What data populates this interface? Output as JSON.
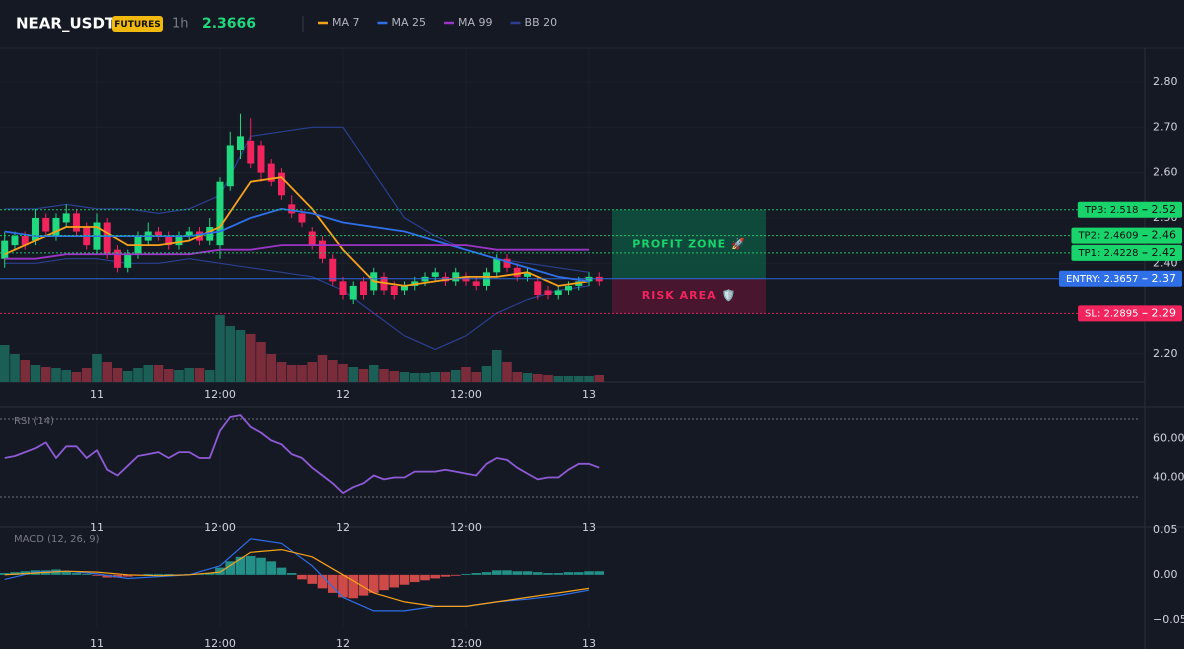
{
  "header": {
    "symbol": "NEAR_USDT",
    "badge": "FUTURES",
    "interval": "1h",
    "price": 2.3666
  },
  "chart_data": [
    {
      "type": "candlestick",
      "xlim": [
        -9.46,
        102.24
      ],
      "xticks": [
        {
          "value": 0,
          "label": "11"
        },
        {
          "value": 12,
          "label": "12:00"
        },
        {
          "value": 24,
          "label": "12"
        },
        {
          "value": 36,
          "label": "12:00"
        },
        {
          "value": 48,
          "label": "13"
        }
      ],
      "ylim": [
        2.138,
        2.875
      ],
      "yticks": [
        {
          "value": 2.2,
          "label": "2.20"
        },
        {
          "value": 2.4,
          "label": "2.40"
        },
        {
          "value": 2.5,
          "label": "2.50"
        },
        {
          "value": 2.6,
          "label": "2.60"
        },
        {
          "value": 2.7,
          "label": "2.70"
        },
        {
          "value": 2.8,
          "label": "2.80"
        }
      ],
      "grid": true,
      "up_color": "#20d97e",
      "down_color": "#f2245d",
      "volume_up_color": "#1b5e56",
      "volume_down_color": "#7b2c3b",
      "x": [
        -9,
        -8,
        -7,
        -6,
        -5,
        -4,
        -3,
        -2,
        -1,
        0,
        1,
        2,
        3,
        4,
        5,
        6,
        7,
        8,
        9,
        10,
        11,
        12,
        13,
        14,
        15,
        16,
        17,
        18,
        19,
        20,
        21,
        22,
        23,
        24,
        25,
        26,
        27,
        28,
        29,
        30,
        31,
        32,
        33,
        34,
        35,
        36,
        37,
        38,
        39,
        40,
        41,
        42,
        43,
        44,
        45,
        46,
        47,
        48,
        49
      ],
      "open": [
        2.41,
        2.44,
        2.46,
        2.45,
        2.5,
        2.46,
        2.49,
        2.51,
        2.48,
        2.43,
        2.49,
        2.43,
        2.39,
        2.42,
        2.45,
        2.47,
        2.46,
        2.44,
        2.46,
        2.47,
        2.45,
        2.44,
        2.57,
        2.65,
        2.67,
        2.66,
        2.62,
        2.6,
        2.53,
        2.51,
        2.47,
        2.45,
        2.41,
        2.36,
        2.32,
        2.36,
        2.34,
        2.37,
        2.35,
        2.34,
        2.35,
        2.36,
        2.37,
        2.37,
        2.36,
        2.37,
        2.36,
        2.35,
        2.38,
        2.41,
        2.39,
        2.37,
        2.36,
        2.34,
        2.33,
        2.34,
        2.35,
        2.36,
        2.37
      ],
      "high": [
        2.47,
        2.47,
        2.47,
        2.52,
        2.51,
        2.51,
        2.53,
        2.52,
        2.49,
        2.51,
        2.5,
        2.44,
        2.43,
        2.47,
        2.49,
        2.48,
        2.47,
        2.47,
        2.48,
        2.48,
        2.5,
        2.59,
        2.69,
        2.73,
        2.72,
        2.67,
        2.63,
        2.61,
        2.55,
        2.52,
        2.48,
        2.46,
        2.42,
        2.37,
        2.36,
        2.37,
        2.39,
        2.38,
        2.36,
        2.36,
        2.37,
        2.38,
        2.39,
        2.38,
        2.39,
        2.38,
        2.37,
        2.39,
        2.42,
        2.42,
        2.4,
        2.39,
        2.37,
        2.35,
        2.35,
        2.36,
        2.37,
        2.38,
        2.38
      ],
      "low": [
        2.39,
        2.43,
        2.43,
        2.44,
        2.46,
        2.45,
        2.48,
        2.46,
        2.43,
        2.42,
        2.41,
        2.38,
        2.38,
        2.41,
        2.44,
        2.45,
        2.43,
        2.43,
        2.45,
        2.44,
        2.44,
        2.41,
        2.56,
        2.63,
        2.61,
        2.58,
        2.57,
        2.54,
        2.5,
        2.48,
        2.43,
        2.4,
        2.35,
        2.32,
        2.31,
        2.32,
        2.33,
        2.33,
        2.32,
        2.33,
        2.34,
        2.35,
        2.36,
        2.35,
        2.35,
        2.35,
        2.34,
        2.34,
        2.37,
        2.38,
        2.36,
        2.36,
        2.32,
        2.32,
        2.32,
        2.33,
        2.34,
        2.35,
        2.35
      ],
      "close": [
        2.45,
        2.46,
        2.44,
        2.5,
        2.47,
        2.5,
        2.51,
        2.47,
        2.44,
        2.49,
        2.42,
        2.39,
        2.42,
        2.46,
        2.47,
        2.46,
        2.44,
        2.46,
        2.47,
        2.45,
        2.48,
        2.58,
        2.66,
        2.68,
        2.62,
        2.6,
        2.58,
        2.55,
        2.51,
        2.49,
        2.44,
        2.41,
        2.36,
        2.33,
        2.35,
        2.33,
        2.38,
        2.34,
        2.33,
        2.35,
        2.36,
        2.37,
        2.38,
        2.36,
        2.38,
        2.36,
        2.35,
        2.38,
        2.41,
        2.39,
        2.37,
        2.38,
        2.33,
        2.33,
        2.34,
        2.35,
        2.36,
        2.37,
        2.36
      ],
      "volume": [
        37,
        28,
        22,
        17,
        15,
        14,
        12,
        10,
        14,
        28,
        20,
        14,
        11,
        14,
        17,
        17,
        13,
        12,
        14,
        14,
        12,
        67,
        56,
        52,
        48,
        40,
        28,
        20,
        17,
        17,
        20,
        27,
        22,
        18,
        15,
        13,
        17,
        13,
        11,
        10,
        9,
        9,
        10,
        10,
        12,
        15,
        10,
        16,
        32,
        20,
        10,
        9,
        8,
        7,
        6,
        6,
        6,
        6,
        7
      ],
      "series": [
        {
          "name": "MA 7",
          "color": "#f7a21b",
          "x": [
            -9,
            -6,
            -3,
            0,
            3,
            6,
            9,
            12,
            15,
            18,
            21,
            24,
            27,
            30,
            33,
            36,
            39,
            42,
            45,
            48
          ],
          "values": [
            2.42,
            2.45,
            2.48,
            2.48,
            2.44,
            2.44,
            2.45,
            2.48,
            2.58,
            2.59,
            2.52,
            2.43,
            2.36,
            2.35,
            2.36,
            2.37,
            2.37,
            2.38,
            2.35,
            2.36
          ]
        },
        {
          "name": "MA 25",
          "color": "#2f6fe8",
          "x": [
            -9,
            -6,
            -3,
            0,
            3,
            6,
            9,
            12,
            15,
            18,
            21,
            24,
            27,
            30,
            33,
            36,
            39,
            42,
            45,
            48
          ],
          "values": [
            2.47,
            2.46,
            2.46,
            2.46,
            2.46,
            2.46,
            2.46,
            2.47,
            2.5,
            2.52,
            2.51,
            2.49,
            2.48,
            2.47,
            2.45,
            2.43,
            2.41,
            2.39,
            2.37,
            2.36
          ]
        },
        {
          "name": "MA 99",
          "color": "#9b35c6",
          "x": [
            -9,
            -6,
            -3,
            0,
            3,
            6,
            9,
            12,
            15,
            18,
            21,
            24,
            27,
            30,
            33,
            36,
            39,
            42,
            45,
            48
          ],
          "values": [
            2.41,
            2.41,
            2.42,
            2.42,
            2.42,
            2.42,
            2.42,
            2.43,
            2.43,
            2.44,
            2.44,
            2.44,
            2.44,
            2.44,
            2.44,
            2.44,
            2.43,
            2.43,
            2.43,
            2.43
          ]
        },
        {
          "name": "BB 20",
          "color": "#2a3f8f",
          "x": [
            -9,
            -6,
            -3,
            0,
            3,
            6,
            9,
            12,
            15,
            18,
            21,
            24,
            27,
            30,
            33,
            36,
            39,
            42,
            45,
            48
          ],
          "upper": [
            2.52,
            2.52,
            2.53,
            2.52,
            2.52,
            2.51,
            2.52,
            2.55,
            2.68,
            2.69,
            2.7,
            2.7,
            2.6,
            2.5,
            2.46,
            2.43,
            2.41,
            2.4,
            2.39,
            2.38
          ],
          "lower": [
            2.4,
            2.4,
            2.41,
            2.41,
            2.4,
            2.4,
            2.41,
            2.4,
            2.39,
            2.38,
            2.37,
            2.34,
            2.29,
            2.24,
            2.21,
            2.24,
            2.29,
            2.32,
            2.34,
            2.35
          ]
        }
      ],
      "levels": [
        {
          "label": "TP3: 2.518",
          "value": 2.518,
          "axis_label": "2.52",
          "color": "#19d46b",
          "style": "dotted"
        },
        {
          "label": "TP2: 2.4609",
          "value": 2.4609,
          "axis_label": "2.46",
          "color": "#19d46b",
          "style": "dotted"
        },
        {
          "label": "TP1: 2.4228",
          "value": 2.4228,
          "axis_label": "2.42",
          "color": "#19d46b",
          "style": "dotted"
        },
        {
          "label": "ENTRY: 2.3657",
          "value": 2.3657,
          "axis_label": "2.37",
          "color": "#2f6fe8",
          "style": "solid"
        },
        {
          "label": "SL: 2.2895",
          "value": 2.2895,
          "axis_label": "2.29",
          "color": "#f2245d",
          "style": "dotted"
        }
      ],
      "zones": [
        {
          "label": "PROFIT ZONE 🚀",
          "from": 2.3657,
          "to": 2.518,
          "color": "#0e5a44",
          "text_color": "#19d46b"
        },
        {
          "label": "RISK AREA 🛡️",
          "from": 2.2895,
          "to": 2.3657,
          "color": "#5a1631",
          "text_color": "#f2245d"
        }
      ]
    },
    {
      "type": "line",
      "title": "RSI (14)",
      "xlim": [
        -9.46,
        102.24
      ],
      "xticks": [
        {
          "value": 0,
          "label": "11"
        },
        {
          "value": 12,
          "label": "12:00"
        },
        {
          "value": 24,
          "label": "12"
        },
        {
          "value": 36,
          "label": "12:00"
        },
        {
          "value": 48,
          "label": "13"
        }
      ],
      "ylim": [
        22.3,
        74.6
      ],
      "yticks": [
        {
          "value": 40,
          "label": "40.00"
        },
        {
          "value": 60,
          "label": "60.00"
        }
      ],
      "bands": [
        70,
        30
      ],
      "series": [
        {
          "color": "#8e5ad6",
          "x": [
            -9,
            -8,
            -7,
            -6,
            -5,
            -4,
            -3,
            -2,
            -1,
            0,
            1,
            2,
            3,
            4,
            5,
            6,
            7,
            8,
            9,
            10,
            11,
            12,
            13,
            14,
            15,
            16,
            17,
            18,
            19,
            20,
            21,
            22,
            23,
            24,
            25,
            26,
            27,
            28,
            29,
            30,
            31,
            32,
            33,
            34,
            35,
            36,
            37,
            38,
            39,
            40,
            41,
            42,
            43,
            44,
            45,
            46,
            47,
            48,
            49
          ],
          "values": [
            50,
            51,
            53,
            55,
            58,
            50,
            56,
            56,
            50,
            54,
            44,
            41,
            46,
            51,
            52,
            53,
            50,
            53,
            53,
            50,
            50,
            64,
            71,
            72,
            66,
            63,
            59,
            57,
            52,
            50,
            45,
            41,
            37,
            32,
            35,
            37,
            41,
            39,
            40,
            40,
            43,
            43,
            43,
            44,
            43,
            42,
            41,
            47,
            50,
            49,
            45,
            42,
            39,
            40,
            40,
            44,
            47,
            47,
            45
          ]
        }
      ]
    },
    {
      "type": "macd",
      "title": "MACD (12, 26, 9)",
      "xlim": [
        -9.46,
        102.24
      ],
      "xticks": [
        {
          "value": 0,
          "label": "11"
        },
        {
          "value": 12,
          "label": "12:00"
        },
        {
          "value": 24,
          "label": "12"
        },
        {
          "value": 36,
          "label": "12:00"
        },
        {
          "value": 48,
          "label": "13"
        }
      ],
      "ylim": [
        -0.059,
        0.052
      ],
      "yticks": [
        {
          "value": -0.05,
          "label": "−0.05"
        },
        {
          "value": 0,
          "label": "0.00"
        },
        {
          "value": 0.05,
          "label": "0.05"
        }
      ],
      "up_color": "#26a69a",
      "down_color": "#ef5350",
      "hist_x": [
        -9,
        -8,
        -7,
        -6,
        -5,
        -4,
        -3,
        -2,
        -1,
        0,
        1,
        2,
        3,
        4,
        5,
        6,
        7,
        8,
        9,
        10,
        11,
        12,
        13,
        14,
        15,
        16,
        17,
        18,
        19,
        20,
        21,
        22,
        23,
        24,
        25,
        26,
        27,
        28,
        29,
        30,
        31,
        32,
        33,
        34,
        35,
        36,
        37,
        38,
        39,
        40,
        41,
        42,
        43,
        44,
        45,
        46,
        47,
        48,
        49
      ],
      "histogram": [
        0.002,
        0.003,
        0.004,
        0.005,
        0.005,
        0.006,
        0.004,
        0.002,
        0.001,
        -0.001,
        -0.003,
        -0.003,
        -0.002,
        -0.001,
        0.001,
        0.001,
        0.001,
        0.0005,
        0.001,
        0.001,
        0.002,
        0.008,
        0.015,
        0.02,
        0.021,
        0.019,
        0.015,
        0.008,
        0.002,
        -0.005,
        -0.01,
        -0.015,
        -0.02,
        -0.025,
        -0.026,
        -0.023,
        -0.02,
        -0.017,
        -0.014,
        -0.011,
        -0.008,
        -0.006,
        -0.004,
        -0.002,
        -0.001,
        0.001,
        0.002,
        0.003,
        0.005,
        0.005,
        0.004,
        0.004,
        0.003,
        0.002,
        0.002,
        0.003,
        0.003,
        0.004,
        0.004
      ],
      "series": [
        {
          "color": "#2f6fe8",
          "x": [
            -9,
            -6,
            -3,
            0,
            3,
            6,
            9,
            12,
            15,
            18,
            21,
            24,
            27,
            30,
            33,
            36,
            39,
            42,
            45,
            48
          ],
          "values": [
            -0.005,
            0.003,
            0.004,
            0.001,
            -0.004,
            -0.002,
            0,
            0.01,
            0.04,
            0.035,
            0.01,
            -0.025,
            -0.04,
            -0.04,
            -0.035,
            -0.035,
            -0.03,
            -0.027,
            -0.023,
            -0.017
          ]
        },
        {
          "color": "#f7a21b",
          "x": [
            -9,
            -6,
            -3,
            0,
            3,
            6,
            9,
            12,
            15,
            18,
            21,
            24,
            27,
            30,
            33,
            36,
            39,
            42,
            45,
            48
          ],
          "values": [
            0,
            0.002,
            0.004,
            0.003,
            0,
            -0.001,
            0,
            0.003,
            0.025,
            0.028,
            0.02,
            0,
            -0.02,
            -0.03,
            -0.035,
            -0.035,
            -0.03,
            -0.025,
            -0.02,
            -0.015
          ]
        }
      ]
    }
  ]
}
